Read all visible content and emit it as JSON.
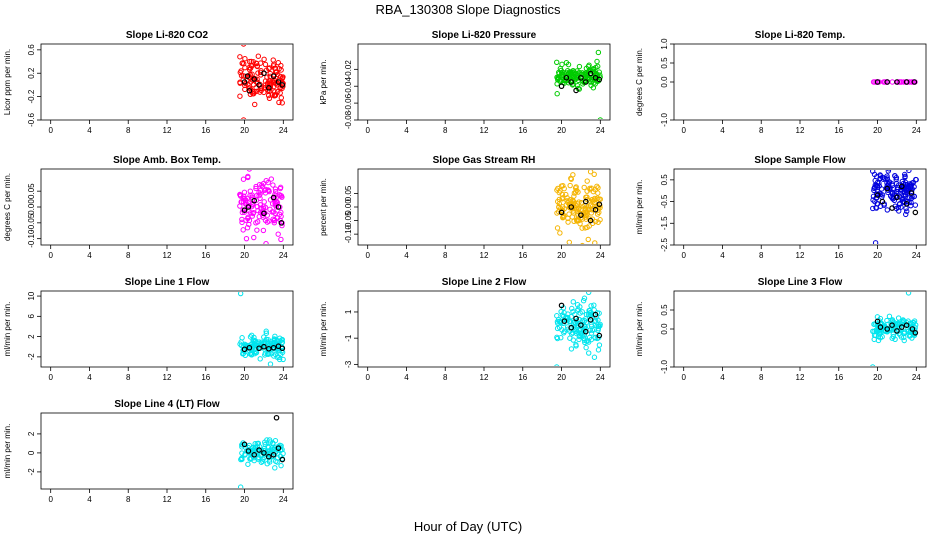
{
  "title": "RBA_130308  Slope Diagnostics",
  "xlabel": "Hour of Day (UTC)",
  "colors": {
    "red": "#ff0000",
    "green": "#00cc00",
    "magenta": "#ff00ff",
    "orange": "#f5b400",
    "blue": "#0000dd",
    "cyan": "#00e5ee",
    "black": "#000000"
  },
  "chart_data": [
    {
      "type": "scatter",
      "title": "Slope Li-820 CO2",
      "ylabel": "Licor ppm per min.",
      "xlim": [
        -1,
        25
      ],
      "xticks": [
        0,
        4,
        8,
        12,
        16,
        20,
        24
      ],
      "ylim": [
        -0.6,
        0.7
      ],
      "yticks": [
        "-0.6",
        "-0.2",
        "0.2",
        "0.6"
      ],
      "color": "red",
      "cluster": {
        "x_range": [
          19.5,
          24
        ],
        "center": 0.1,
        "spread": 0.18,
        "count": 140
      },
      "outliers": [
        [
          19.9,
          0.7
        ],
        [
          19.9,
          -0.6
        ]
      ],
      "black_points": [
        [
          20.0,
          0.05
        ],
        [
          20.3,
          0.15
        ],
        [
          20.5,
          -0.1
        ],
        [
          21.0,
          0.1
        ],
        [
          21.5,
          0.0
        ],
        [
          22.0,
          0.2
        ],
        [
          22.5,
          -0.05
        ],
        [
          23.0,
          0.15
        ],
        [
          23.5,
          0.05
        ],
        [
          23.9,
          0.0
        ]
      ]
    },
    {
      "type": "scatter",
      "title": "Slope Li-820 Pressure",
      "ylabel": "kPa per min.",
      "xlim": [
        -1,
        25
      ],
      "xticks": [
        0,
        4,
        8,
        12,
        16,
        20,
        24
      ],
      "ylim": [
        -0.08,
        0.01
      ],
      "yticks": [
        "-0.08",
        "-0.06",
        "-0.04",
        "-0.02"
      ],
      "color": "green",
      "cluster": {
        "x_range": [
          19.5,
          24
        ],
        "center": -0.028,
        "spread": 0.006,
        "count": 140
      },
      "outliers": [
        [
          24.0,
          -0.08
        ],
        [
          23.8,
          0.0
        ]
      ],
      "black_points": [
        [
          20.0,
          -0.04
        ],
        [
          20.5,
          -0.03
        ],
        [
          21.0,
          -0.035
        ],
        [
          21.5,
          -0.045
        ],
        [
          22.0,
          -0.03
        ],
        [
          22.5,
          -0.035
        ],
        [
          23.0,
          -0.025
        ],
        [
          23.5,
          -0.03
        ],
        [
          23.9,
          -0.032
        ]
      ]
    },
    {
      "type": "scatter",
      "title": "Slope Li-820 Temp.",
      "ylabel": "degrees C per min.",
      "xlim": [
        -1,
        25
      ],
      "xticks": [
        0,
        4,
        8,
        12,
        16,
        20,
        24
      ],
      "ylim": [
        -1.0,
        1.0
      ],
      "yticks": [
        "-1.0",
        "0.0",
        "0.5",
        "1.0"
      ],
      "color": "magenta",
      "cluster": {
        "x_range": [
          19.5,
          24
        ],
        "center": 0.0,
        "spread": 0.0,
        "count": 30
      },
      "outliers": [],
      "black_points": [
        [
          20.0,
          0.0
        ],
        [
          21.0,
          0.0
        ],
        [
          22.0,
          0.0
        ],
        [
          23.0,
          0.0
        ],
        [
          23.8,
          0.0
        ]
      ]
    },
    {
      "type": "scatter",
      "title": "Slope Amb. Box Temp.",
      "ylabel": "degrees C per min.",
      "xlim": [
        -1,
        25
      ],
      "xticks": [
        0,
        4,
        8,
        12,
        16,
        20,
        24
      ],
      "ylim": [
        -0.12,
        0.12
      ],
      "yticks": [
        "-0.10",
        "-0.05",
        "0.00",
        "0.05"
      ],
      "color": "magenta",
      "cluster": {
        "x_range": [
          19.5,
          24
        ],
        "center": 0.0,
        "spread": 0.04,
        "count": 140
      },
      "outliers": [
        [
          20.5,
          0.12
        ],
        [
          20.2,
          -0.1
        ]
      ],
      "black_points": [
        [
          20.0,
          -0.01
        ],
        [
          20.4,
          0.0
        ],
        [
          21.0,
          0.02
        ],
        [
          22.0,
          -0.02
        ],
        [
          23.0,
          0.03
        ],
        [
          23.5,
          0.0
        ],
        [
          23.8,
          -0.05
        ]
      ]
    },
    {
      "type": "scatter",
      "title": "Slope Gas Stream RH",
      "ylabel": "percent per min.",
      "xlim": [
        -1,
        25
      ],
      "xticks": [
        0,
        4,
        8,
        12,
        16,
        20,
        24
      ],
      "ylim": [
        -0.14,
        0.14
      ],
      "yticks": [
        "-0.10",
        "-0.05",
        "0.00",
        "0.05"
      ],
      "color": "orange",
      "cluster": {
        "x_range": [
          19.5,
          24
        ],
        "center": 0.0,
        "spread": 0.05,
        "count": 160
      },
      "outliers": [
        [
          23.0,
          0.13
        ],
        [
          20.8,
          -0.13
        ]
      ],
      "black_points": [
        [
          20.0,
          -0.02
        ],
        [
          21.0,
          0.0
        ],
        [
          22.0,
          -0.03
        ],
        [
          22.5,
          0.02
        ],
        [
          23.0,
          -0.05
        ],
        [
          23.5,
          -0.01
        ],
        [
          23.9,
          0.01
        ]
      ]
    },
    {
      "type": "scatter",
      "title": "Slope Sample Flow",
      "ylabel": "ml/min per min.",
      "xlim": [
        -1,
        25
      ],
      "xticks": [
        0,
        4,
        8,
        12,
        16,
        20,
        24
      ],
      "ylim": [
        -2.5,
        1.0
      ],
      "yticks": [
        "-2.5",
        "-1.5",
        "-0.5",
        "0.5"
      ],
      "color": "blue",
      "cluster": {
        "x_range": [
          19.5,
          24
        ],
        "center": 0.0,
        "spread": 0.45,
        "count": 160
      },
      "outliers": [
        [
          19.8,
          -2.4
        ],
        [
          19.5,
          0.9
        ]
      ],
      "black_points": [
        [
          20.0,
          -0.2
        ],
        [
          20.5,
          -0.5
        ],
        [
          21.0,
          0.1
        ],
        [
          21.5,
          -0.8
        ],
        [
          22.0,
          -0.3
        ],
        [
          22.5,
          0.2
        ],
        [
          23.0,
          -0.6
        ],
        [
          23.5,
          -0.1
        ],
        [
          23.9,
          -1.0
        ]
      ]
    },
    {
      "type": "scatter",
      "title": "Slope Line 1 Flow",
      "ylabel": "ml/min per min.",
      "xlim": [
        -1,
        25
      ],
      "xticks": [
        0,
        4,
        8,
        12,
        16,
        20,
        24
      ],
      "ylim": [
        -4,
        11
      ],
      "yticks": [
        "-2",
        "2",
        "6",
        "10"
      ],
      "color": "cyan",
      "cluster": {
        "x_range": [
          19.5,
          24
        ],
        "center": 0.0,
        "spread": 1.2,
        "count": 130
      },
      "outliers": [
        [
          19.6,
          10.5
        ]
      ],
      "black_points": [
        [
          20.0,
          -0.5
        ],
        [
          20.5,
          -0.2
        ],
        [
          21.5,
          -0.3
        ],
        [
          22.0,
          0.0
        ],
        [
          22.5,
          -0.4
        ],
        [
          23.0,
          -0.2
        ],
        [
          23.5,
          0.1
        ],
        [
          23.9,
          -0.3
        ]
      ]
    },
    {
      "type": "scatter",
      "title": "Slope Line 2 Flow",
      "ylabel": "ml/min per min.",
      "xlim": [
        -1,
        25
      ],
      "xticks": [
        0,
        4,
        8,
        12,
        16,
        20,
        24
      ],
      "ylim": [
        -3.2,
        2.6
      ],
      "yticks": [
        "-3",
        "-1",
        "1"
      ],
      "color": "cyan",
      "cluster": {
        "x_range": [
          19.5,
          24
        ],
        "center": -0.1,
        "spread": 0.9,
        "count": 140
      },
      "outliers": [
        [
          19.5,
          -3.2
        ],
        [
          22.8,
          2.5
        ]
      ],
      "black_points": [
        [
          20.0,
          1.5
        ],
        [
          20.3,
          0.3
        ],
        [
          21.0,
          -0.2
        ],
        [
          21.5,
          0.5
        ],
        [
          22.0,
          0.0
        ],
        [
          22.5,
          -0.5
        ],
        [
          23.0,
          0.4
        ],
        [
          23.5,
          0.8
        ],
        [
          23.9,
          -0.8
        ]
      ]
    },
    {
      "type": "scatter",
      "title": "Slope Line 3 Flow",
      "ylabel": "ml/min per min.",
      "xlim": [
        -1,
        25
      ],
      "xticks": [
        0,
        4,
        8,
        12,
        16,
        20,
        24
      ],
      "ylim": [
        -1.0,
        1.0
      ],
      "yticks": [
        "-1.0",
        "0.0",
        "0.5"
      ],
      "color": "cyan",
      "cluster": {
        "x_range": [
          19.5,
          24
        ],
        "center": 0.0,
        "spread": 0.15,
        "count": 120
      },
      "outliers": [
        [
          19.5,
          -1.0
        ],
        [
          23.2,
          0.95
        ]
      ],
      "black_points": [
        [
          20.0,
          0.2
        ],
        [
          20.3,
          0.05
        ],
        [
          21.0,
          0.0
        ],
        [
          21.5,
          0.1
        ],
        [
          22.0,
          -0.05
        ],
        [
          22.5,
          0.05
        ],
        [
          23.0,
          0.1
        ],
        [
          23.6,
          0.0
        ],
        [
          23.9,
          -0.1
        ]
      ]
    },
    {
      "type": "scatter",
      "title": "Slope Line 4 (LT) Flow",
      "ylabel": "ml/min per min.",
      "xlim": [
        -1,
        25
      ],
      "xticks": [
        0,
        4,
        8,
        12,
        16,
        20,
        24
      ],
      "ylim": [
        -3.8,
        4.2
      ],
      "yticks": [
        "-2",
        "0",
        "2"
      ],
      "color": "cyan",
      "cluster": {
        "x_range": [
          19.5,
          24
        ],
        "center": 0.0,
        "spread": 0.6,
        "count": 110
      },
      "outliers": [
        [
          19.6,
          -3.6
        ]
      ],
      "black_points": [
        [
          20.0,
          0.9
        ],
        [
          20.4,
          0.2
        ],
        [
          21.0,
          -0.2
        ],
        [
          21.5,
          0.3
        ],
        [
          22.0,
          0.0
        ],
        [
          22.5,
          -0.4
        ],
        [
          23.0,
          -0.2
        ],
        [
          23.5,
          0.5
        ],
        [
          23.3,
          3.7
        ],
        [
          23.9,
          -0.7
        ]
      ]
    }
  ]
}
